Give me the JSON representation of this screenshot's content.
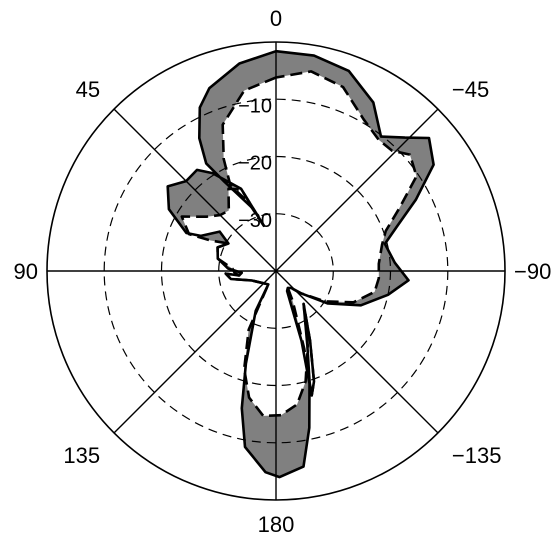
{
  "chart_data": {
    "type": "polar-area",
    "title": "",
    "angle_direction": "counterclockwise",
    "zero_position": "top",
    "angle_tick_labels": [
      {
        "angle": 0,
        "label": "0"
      },
      {
        "angle": 45,
        "label": "45"
      },
      {
        "angle": 90,
        "label": "90"
      },
      {
        "angle": 135,
        "label": "135"
      },
      {
        "angle": 180,
        "label": "180"
      },
      {
        "angle": -135,
        "label": "−135"
      },
      {
        "angle": -90,
        "label": "−90"
      },
      {
        "angle": -45,
        "label": "−45"
      }
    ],
    "radial_tick_labels": [
      {
        "value": -10,
        "label": "−10"
      },
      {
        "value": -20,
        "label": "−20"
      },
      {
        "value": -30,
        "label": "−30"
      }
    ],
    "radial_range": [
      -40,
      0
    ],
    "dashed_circles": [
      -10,
      -20,
      -30
    ],
    "colors": {
      "fill": "#808080",
      "line": "#000000",
      "grid": "#000000"
    },
    "series": [
      {
        "style": "solid",
        "points": [
          [
            0,
            -1.6
          ],
          [
            10,
            -3.2
          ],
          [
            20,
            -6.0
          ],
          [
            25,
            -8.5
          ],
          [
            30,
            -13.2
          ],
          [
            33,
            -17.6
          ],
          [
            30,
            -22.0
          ],
          [
            20,
            -28.5
          ],
          [
            15,
            -31.8
          ],
          [
            23,
            -24.4
          ],
          [
            33,
            -19.6
          ],
          [
            38,
            -17.6
          ],
          [
            45,
            -17.8
          ],
          [
            52,
            -16.0
          ],
          [
            60,
            -18.4
          ],
          [
            67,
            -23.0
          ],
          [
            65,
            -25.5
          ],
          [
            55,
            -28.0
          ],
          [
            60,
            -30.4
          ],
          [
            68,
            -29.0
          ],
          [
            78,
            -29.6
          ],
          [
            87,
            -31.6
          ],
          [
            93,
            -34.0
          ],
          [
            97,
            -33.5
          ],
          [
            93,
            -31.2
          ],
          [
            100,
            -32.0
          ],
          [
            111,
            -35.4
          ],
          [
            150,
            -37.3
          ],
          [
            153,
            -32.2
          ],
          [
            162,
            -23.0
          ],
          [
            166,
            -15.3
          ],
          [
            170,
            -8.8
          ],
          [
            177,
            -4.8
          ],
          [
            181,
            -4.0
          ],
          [
            188,
            -5.5
          ],
          [
            192,
            -12.0
          ],
          [
            197,
            -20.0
          ],
          [
            203,
            -26.0
          ],
          [
            220,
            -32.5
          ],
          [
            206,
            -26.4
          ],
          [
            199,
            -19.6
          ],
          [
            196,
            -17.4
          ],
          [
            200,
            -27.0
          ],
          [
            209,
            -36.0
          ],
          [
            215,
            -36.4
          ],
          [
            222,
            -36.0
          ],
          [
            228,
            -34.2
          ],
          [
            238,
            -29.3
          ],
          [
            248,
            -24.0
          ],
          [
            258,
            -20.0
          ],
          [
            266,
            -16.8
          ],
          [
            274,
            -19.2
          ],
          [
            284,
            -20.4
          ],
          [
            290,
            -17.6
          ],
          [
            297,
            -12.6
          ],
          [
            304,
            -6.8
          ],
          [
            311,
            -4.6
          ],
          [
            316,
            -7.6
          ],
          [
            322,
            -10.2
          ],
          [
            330,
            -6.0
          ],
          [
            340,
            -2.8
          ],
          [
            350,
            -1.8
          ]
        ]
      },
      {
        "style": "dashed",
        "points": [
          [
            0,
            -6.2
          ],
          [
            10,
            -8.0
          ],
          [
            20,
            -12.8
          ],
          [
            25,
            -18.4
          ],
          [
            28,
            -23.0
          ],
          [
            22,
            -27.0
          ],
          [
            15,
            -31.8
          ],
          [
            23,
            -24.6
          ],
          [
            30,
            -23.4
          ],
          [
            38,
            -26.6
          ],
          [
            45,
            -26.2
          ],
          [
            52,
            -24.6
          ],
          [
            60,
            -21.0
          ],
          [
            67,
            -23.5
          ],
          [
            65,
            -27.4
          ],
          [
            60,
            -30.4
          ],
          [
            68,
            -29.0
          ],
          [
            78,
            -29.6
          ],
          [
            87,
            -32.4
          ],
          [
            93,
            -32.8
          ],
          [
            97,
            -33.5
          ],
          [
            93,
            -31.2
          ],
          [
            100,
            -32.0
          ],
          [
            111,
            -35.4
          ],
          [
            150,
            -37.3
          ],
          [
            155,
            -28.7
          ],
          [
            162,
            -22.0
          ],
          [
            168,
            -17.4
          ],
          [
            175,
            -14.6
          ],
          [
            182,
            -14.8
          ],
          [
            189,
            -16.4
          ],
          [
            195,
            -20.0
          ],
          [
            203,
            -25.8
          ],
          [
            220,
            -32.5
          ],
          [
            206,
            -26.4
          ],
          [
            199,
            -19.6
          ],
          [
            196,
            -17.4
          ],
          [
            200,
            -25.6
          ],
          [
            209,
            -34.0
          ],
          [
            215,
            -36.4
          ],
          [
            222,
            -36.0
          ],
          [
            228,
            -34.2
          ],
          [
            238,
            -30.0
          ],
          [
            248,
            -25.4
          ],
          [
            258,
            -22.4
          ],
          [
            266,
            -22.0
          ],
          [
            274,
            -22.0
          ],
          [
            284,
            -20.9
          ],
          [
            290,
            -19.6
          ],
          [
            297,
            -15.8
          ],
          [
            304,
            -10.4
          ],
          [
            311,
            -9.0
          ],
          [
            316,
            -10.8
          ],
          [
            322,
            -10.9
          ],
          [
            330,
            -9.4
          ],
          [
            340,
            -5.8
          ],
          [
            350,
            -4.6
          ]
        ]
      }
    ]
  }
}
